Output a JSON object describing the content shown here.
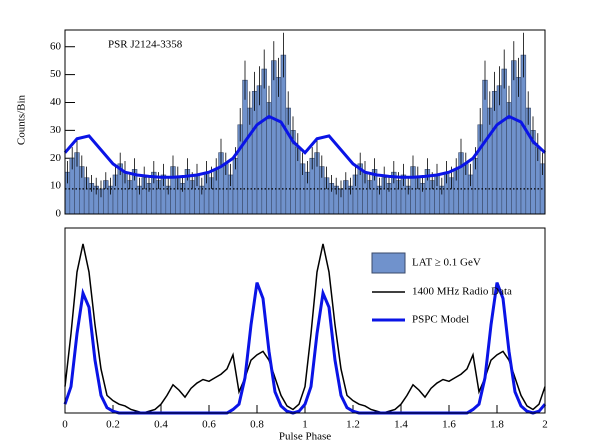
{
  "chart_data": [
    {
      "type": "histogram",
      "title": "PSR J2124-3358",
      "ylabel": "Counts/Bin",
      "name": "LAT ≥ 0.1 GeV",
      "color": "#7092cc",
      "bins": [
        0,
        0.02,
        0.04,
        0.06,
        0.08,
        0.1,
        0.12,
        0.14,
        0.16,
        0.18,
        0.2,
        0.22,
        0.24,
        0.26,
        0.28,
        0.3,
        0.32,
        0.34,
        0.36,
        0.38,
        0.4,
        0.42,
        0.44,
        0.46,
        0.48,
        0.5,
        0.52,
        0.54,
        0.56,
        0.58,
        0.6,
        0.62,
        0.64,
        0.66,
        0.68,
        0.7,
        0.72,
        0.74,
        0.76,
        0.78,
        0.8,
        0.82,
        0.84,
        0.86,
        0.88,
        0.9,
        0.92,
        0.94,
        0.96,
        0.98,
        1,
        1.02,
        1.04,
        1.06,
        1.08,
        1.1,
        1.12,
        1.14,
        1.16,
        1.18,
        1.2,
        1.22,
        1.24,
        1.26,
        1.28,
        1.3,
        1.32,
        1.34,
        1.36,
        1.38,
        1.4,
        1.42,
        1.44,
        1.46,
        1.48,
        1.5,
        1.52,
        1.54,
        1.56,
        1.58,
        1.6,
        1.62,
        1.64,
        1.66,
        1.68,
        1.7,
        1.72,
        1.74,
        1.76,
        1.78,
        1.8,
        1.82,
        1.84,
        1.86,
        1.88,
        1.9,
        1.92,
        1.94,
        1.96,
        1.98,
        2
      ],
      "values": [
        15,
        20,
        22,
        17,
        13,
        11,
        10,
        9,
        12,
        10,
        14,
        18,
        15,
        12,
        16,
        10,
        13,
        11,
        15,
        12,
        14,
        10,
        17,
        13,
        11,
        16,
        12,
        14,
        10,
        15,
        13,
        16,
        22,
        18,
        14,
        20,
        32,
        48,
        38,
        44,
        46,
        52,
        40,
        55,
        49,
        57,
        38,
        30,
        24,
        18,
        15,
        20,
        22,
        17,
        13,
        11,
        10,
        9,
        12,
        10,
        14,
        18,
        15,
        12,
        16,
        10,
        13,
        11,
        15,
        12,
        14,
        10,
        17,
        13,
        11,
        16,
        12,
        14,
        10,
        15,
        13,
        16,
        22,
        18,
        14,
        20,
        32,
        48,
        38,
        44,
        46,
        52,
        40,
        55,
        49,
        57,
        38,
        30,
        24,
        18
      ],
      "errors": [
        4,
        4,
        5,
        4,
        4,
        3,
        3,
        3,
        3,
        3,
        4,
        4,
        4,
        3,
        4,
        3,
        4,
        3,
        4,
        3,
        4,
        3,
        4,
        4,
        3,
        4,
        3,
        4,
        3,
        4,
        4,
        4,
        5,
        4,
        4,
        4,
        6,
        7,
        6,
        7,
        7,
        7,
        6,
        7,
        7,
        8,
        6,
        5,
        5,
        4,
        4,
        4,
        5,
        4,
        4,
        3,
        3,
        3,
        3,
        3,
        4,
        4,
        4,
        3,
        4,
        3,
        4,
        3,
        4,
        3,
        4,
        3,
        4,
        4,
        3,
        4,
        3,
        4,
        3,
        4,
        4,
        4,
        5,
        4,
        4,
        4,
        6,
        7,
        6,
        7,
        7,
        7,
        6,
        7,
        7,
        8,
        6,
        5,
        5,
        4
      ],
      "background": 9,
      "series": [
        {
          "name": "PSPC Model",
          "color": "#0a14e6",
          "x": [
            0,
            0.05,
            0.1,
            0.15,
            0.2,
            0.25,
            0.3,
            0.35,
            0.4,
            0.45,
            0.5,
            0.55,
            0.6,
            0.65,
            0.7,
            0.75,
            0.8,
            0.85,
            0.9,
            0.95,
            1,
            1.05,
            1.1,
            1.15,
            1.2,
            1.25,
            1.3,
            1.35,
            1.4,
            1.45,
            1.5,
            1.55,
            1.6,
            1.65,
            1.7,
            1.75,
            1.8,
            1.85,
            1.9,
            1.95,
            2
          ],
          "values": [
            22,
            27,
            28,
            23,
            18,
            15,
            14,
            13.5,
            13.2,
            13.2,
            13.5,
            14,
            15,
            17,
            20,
            26,
            32,
            35,
            33,
            26,
            22,
            27,
            28,
            23,
            18,
            15,
            14,
            13.5,
            13.2,
            13.2,
            13.5,
            14,
            15,
            17,
            20,
            26,
            32,
            35,
            33,
            26,
            22
          ]
        }
      ],
      "xlim": [
        0,
        2
      ],
      "xticks": [
        0,
        0.2,
        0.4,
        0.6,
        0.8,
        1,
        1.2,
        1.4,
        1.6,
        1.8,
        2
      ],
      "ylim": [
        0,
        66
      ],
      "yticks": [
        0,
        10,
        20,
        30,
        40,
        50,
        60
      ]
    },
    {
      "type": "line",
      "xlabel": "Pulse Phase",
      "x": [
        0,
        0.025,
        0.05,
        0.075,
        0.1,
        0.125,
        0.15,
        0.175,
        0.2,
        0.225,
        0.25,
        0.275,
        0.3,
        0.325,
        0.35,
        0.375,
        0.4,
        0.425,
        0.45,
        0.475,
        0.5,
        0.525,
        0.55,
        0.575,
        0.6,
        0.625,
        0.65,
        0.675,
        0.7,
        0.725,
        0.75,
        0.775,
        0.8,
        0.825,
        0.85,
        0.875,
        0.9,
        0.925,
        0.95,
        0.975,
        1,
        1.025,
        1.05,
        1.075,
        1.1,
        1.125,
        1.15,
        1.175,
        1.2,
        1.225,
        1.25,
        1.275,
        1.3,
        1.325,
        1.35,
        1.375,
        1.4,
        1.425,
        1.45,
        1.475,
        1.5,
        1.525,
        1.55,
        1.575,
        1.6,
        1.625,
        1.65,
        1.675,
        1.7,
        1.725,
        1.75,
        1.775,
        1.8,
        1.825,
        1.85,
        1.875,
        1.9,
        1.925,
        1.95,
        1.975,
        2
      ],
      "series": [
        {
          "name": "1400 MHz Radio Data",
          "color": "#000000",
          "values": [
            0.15,
            0.45,
            0.8,
            0.96,
            0.8,
            0.5,
            0.25,
            0.1,
            0.07,
            0.05,
            0.04,
            0.02,
            0.01,
            0,
            0.01,
            0.02,
            0.05,
            0.1,
            0.16,
            0.13,
            0.09,
            0.14,
            0.17,
            0.19,
            0.18,
            0.2,
            0.22,
            0.25,
            0.33,
            0.12,
            0.2,
            0.3,
            0.33,
            0.35,
            0.3,
            0.2,
            0.1,
            0.04,
            0.02,
            0.05,
            0.15,
            0.45,
            0.8,
            0.96,
            0.8,
            0.5,
            0.25,
            0.1,
            0.07,
            0.05,
            0.04,
            0.02,
            0.01,
            0,
            0.01,
            0.02,
            0.05,
            0.1,
            0.16,
            0.13,
            0.09,
            0.14,
            0.17,
            0.19,
            0.18,
            0.2,
            0.22,
            0.25,
            0.33,
            0.12,
            0.2,
            0.3,
            0.33,
            0.35,
            0.3,
            0.2,
            0.1,
            0.04,
            0.02,
            0.05,
            0.15
          ]
        },
        {
          "name": "PSPC Model",
          "color": "#0a14e6",
          "values": [
            0.05,
            0.15,
            0.45,
            0.68,
            0.6,
            0.3,
            0.1,
            0.03,
            0.01,
            0,
            0,
            0,
            0,
            0,
            0,
            0,
            0,
            0,
            0,
            0,
            0,
            0,
            0,
            0,
            0,
            0,
            0,
            0,
            0.02,
            0.05,
            0.2,
            0.5,
            0.74,
            0.65,
            0.35,
            0.12,
            0.04,
            0.01,
            0,
            0.01,
            0.05,
            0.15,
            0.45,
            0.68,
            0.6,
            0.3,
            0.1,
            0.03,
            0.01,
            0,
            0,
            0,
            0,
            0,
            0,
            0,
            0,
            0,
            0,
            0,
            0,
            0,
            0,
            0,
            0,
            0,
            0,
            0,
            0.02,
            0.05,
            0.2,
            0.5,
            0.74,
            0.65,
            0.35,
            0.12,
            0.04,
            0.01,
            0,
            0.01,
            0.05
          ]
        }
      ],
      "xlim": [
        0,
        2
      ],
      "xticks": [
        0,
        0.2,
        0.4,
        0.6,
        0.8,
        1,
        1.2,
        1.4,
        1.6,
        1.8,
        2
      ],
      "ylim": [
        0,
        1.05
      ]
    }
  ]
}
